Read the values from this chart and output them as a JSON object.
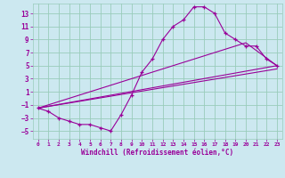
{
  "xlabel": "Windchill (Refroidissement éolien,°C)",
  "bg_color": "#cce8f0",
  "line_color": "#990099",
  "grid_color": "#99ccbb",
  "x_ticks": [
    0,
    1,
    2,
    3,
    4,
    5,
    6,
    7,
    8,
    9,
    10,
    11,
    12,
    13,
    14,
    15,
    16,
    17,
    18,
    19,
    20,
    21,
    22,
    23
  ],
  "y_ticks": [
    -5,
    -3,
    -1,
    1,
    3,
    5,
    7,
    9,
    11,
    13
  ],
  "xlim": [
    -0.5,
    23.5
  ],
  "ylim": [
    -6.2,
    14.5
  ],
  "line1_x": [
    0,
    1,
    2,
    3,
    4,
    5,
    6,
    7,
    8,
    9,
    10,
    11,
    12,
    13,
    14,
    15,
    16,
    17,
    18,
    19,
    20,
    21,
    22,
    23
  ],
  "line1_y": [
    -1.5,
    -2,
    -3,
    -3.5,
    -4,
    -4,
    -4.5,
    -5,
    -2.5,
    0.5,
    4,
    6,
    9,
    11,
    12,
    14,
    14,
    13,
    10,
    9,
    8,
    8,
    6,
    5
  ],
  "line2_x": [
    0,
    23
  ],
  "line2_y": [
    -1.5,
    5
  ],
  "line3_x": [
    0,
    23
  ],
  "line3_y": [
    -1.5,
    4.5
  ],
  "line4_x": [
    0,
    20,
    23
  ],
  "line4_y": [
    -1.5,
    8.5,
    5
  ]
}
